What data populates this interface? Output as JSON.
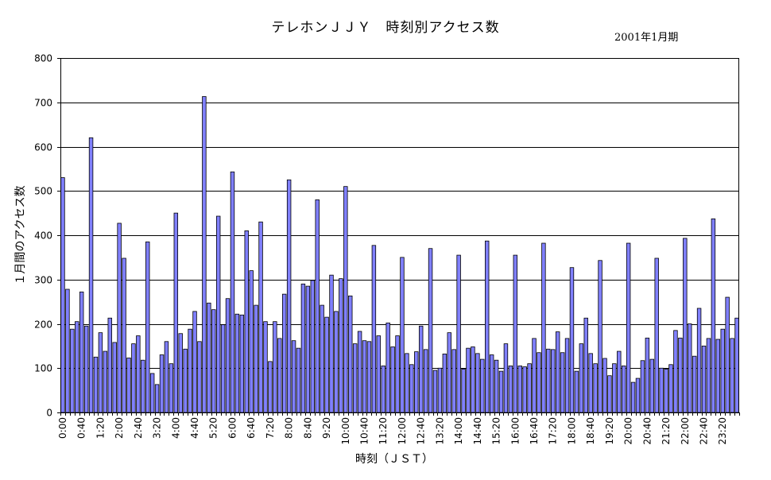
{
  "chart_data": {
    "type": "bar",
    "title": "テレホンＪＪＹ　時刻別アクセス数",
    "subtitle": "2001年1月期",
    "xlabel": "時刻（ＪＳＴ）",
    "ylabel": "１月間のアクセス数",
    "ylim": [
      0,
      800
    ],
    "yticks": [
      0,
      100,
      200,
      300,
      400,
      500,
      600,
      700,
      800
    ],
    "grid": true,
    "legend": "none",
    "bar_color": "#8080ff",
    "bar_stroke": "#000000",
    "xtick_labels": [
      "0:00",
      "0:40",
      "1:20",
      "2:00",
      "2:40",
      "3:20",
      "4:00",
      "4:40",
      "5:20",
      "6:00",
      "6:40",
      "7:20",
      "8:00",
      "8:40",
      "9:20",
      "10:00",
      "10:40",
      "11:20",
      "12:00",
      "12:40",
      "13:20",
      "14:00",
      "14:40",
      "15:20",
      "16:00",
      "16:40",
      "17:20",
      "18:00",
      "18:40",
      "19:20",
      "20:00",
      "20:40",
      "21:20",
      "22:00",
      "22:40",
      "23:20"
    ],
    "xtick_every": 4,
    "values": [
      530,
      278,
      188,
      205,
      272,
      195,
      620,
      125,
      180,
      138,
      213,
      158,
      427,
      348,
      123,
      155,
      173,
      118,
      385,
      88,
      63,
      130,
      160,
      110,
      450,
      178,
      143,
      188,
      228,
      160,
      713,
      247,
      232,
      443,
      198,
      257,
      543,
      222,
      220,
      410,
      320,
      242,
      430,
      205,
      115,
      205,
      167,
      267,
      525,
      162,
      145,
      290,
      285,
      298,
      480,
      242,
      215,
      310,
      228,
      302,
      510,
      263,
      155,
      183,
      162,
      160,
      377,
      173,
      105,
      202,
      148,
      173,
      350,
      133,
      108,
      137,
      195,
      142,
      370,
      95,
      100,
      132,
      180,
      142,
      355,
      98,
      145,
      148,
      133,
      120,
      387,
      130,
      118,
      93,
      155,
      105,
      355,
      105,
      103,
      110,
      167,
      135,
      382,
      143,
      142,
      182,
      135,
      167,
      327,
      93,
      155,
      213,
      133,
      110,
      343,
      122,
      83,
      110,
      138,
      105,
      382,
      68,
      77,
      117,
      168,
      120,
      348,
      100,
      98,
      108,
      185,
      168,
      393,
      200,
      127,
      235,
      150,
      167,
      437,
      165,
      188,
      260,
      167,
      213
    ]
  }
}
